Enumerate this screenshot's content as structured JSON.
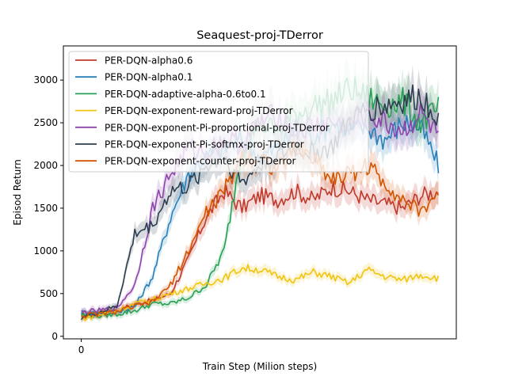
{
  "chart_data": {
    "type": "line",
    "title": "Seaquest-proj-TDerror",
    "xlabel": "Train Step (Milion steps)",
    "ylabel": "Episod Return",
    "x_ticks": [
      "0"
    ],
    "y_ticks": [
      0,
      500,
      1000,
      1500,
      2000,
      2500,
      3000
    ],
    "xlim": [
      -0.05,
      1.05
    ],
    "ylim": [
      -30,
      3400
    ],
    "legend_position": "upper left",
    "grid": false,
    "x": [
      0,
      0.05,
      0.1,
      0.15,
      0.2,
      0.25,
      0.3,
      0.35,
      0.4,
      0.45,
      0.5,
      0.55,
      0.6,
      0.65,
      0.7,
      0.75,
      0.8,
      0.85,
      0.9,
      0.95,
      1.0
    ],
    "series": [
      {
        "name": "PER-DQN-alpha0.6",
        "color": "#c0392b",
        "values": [
          250,
          260,
          300,
          380,
          420,
          500,
          900,
          1400,
          1700,
          1500,
          1650,
          1600,
          1700,
          1600,
          1750,
          1700,
          1600,
          1550,
          1500,
          1650,
          1700
        ]
      },
      {
        "name": "PER-DQN-alpha0.1",
        "color": "#2980b9",
        "values": [
          280,
          270,
          290,
          350,
          700,
          1400,
          1900,
          2100,
          2200,
          2300,
          2100,
          2200,
          2400,
          2350,
          2500,
          2400,
          2450,
          2300,
          2500,
          2450,
          2000
        ]
      },
      {
        "name": "PER-DQN-adaptive-alpha-0.6to0.1",
        "color": "#27a055",
        "values": [
          250,
          240,
          260,
          300,
          380,
          380,
          450,
          600,
          1000,
          2200,
          2500,
          2400,
          2600,
          2700,
          2750,
          2900,
          2800,
          2700,
          2750,
          2500,
          2650
        ]
      },
      {
        "name": "PER-DQN-exponent-reward-proj-TDerror",
        "color": "#f1c40f",
        "values": [
          200,
          250,
          300,
          380,
          430,
          500,
          560,
          620,
          680,
          800,
          780,
          700,
          660,
          750,
          700,
          620,
          780,
          700,
          660,
          720,
          680
        ]
      },
      {
        "name": "PER-DQN-exponent-Pi-proportional-proj-TDerror",
        "color": "#8e44ad",
        "values": [
          280,
          300,
          330,
          600,
          1500,
          1900,
          2200,
          2150,
          2300,
          2250,
          2500,
          2600,
          2400,
          2450,
          2500,
          2450,
          2600,
          2500,
          2400,
          2600,
          2350
        ]
      },
      {
        "name": "PER-DQN-exponent-Pi-softmx-proj-TDerror",
        "color": "#2c3e50",
        "values": [
          220,
          280,
          350,
          1200,
          1300,
          1700,
          1750,
          2000,
          2100,
          1800,
          2000,
          2100,
          2200,
          2150,
          2200,
          2500,
          2650,
          2700,
          2750,
          2800,
          2600
        ]
      },
      {
        "name": "PER-DQN-exponent-counter-proj-TDerror",
        "color": "#d35400",
        "values": [
          240,
          260,
          290,
          350,
          400,
          600,
          1000,
          1450,
          1700,
          2100,
          2100,
          1950,
          2200,
          2100,
          1850,
          1900,
          2000,
          1800,
          1600,
          1450,
          1700
        ]
      }
    ]
  }
}
